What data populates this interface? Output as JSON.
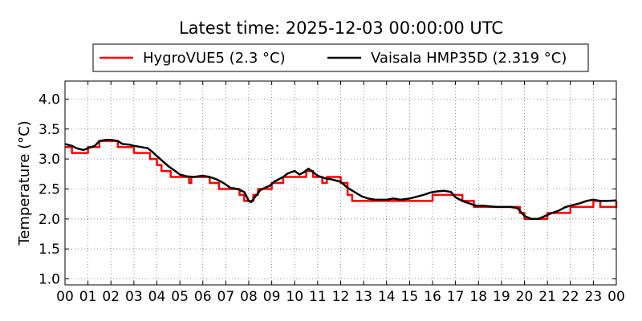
{
  "chart_data": {
    "type": "line",
    "title": "Latest time: 2025-12-03 00:00:00 UTC",
    "xlabel": "",
    "ylabel": "Temperature (°C)",
    "xlim": [
      0,
      24
    ],
    "ylim": [
      0.9,
      4.3
    ],
    "x_ticks": [
      "00",
      "01",
      "02",
      "03",
      "04",
      "05",
      "06",
      "07",
      "08",
      "09",
      "10",
      "11",
      "12",
      "13",
      "14",
      "15",
      "16",
      "17",
      "18",
      "19",
      "20",
      "21",
      "22",
      "23",
      "00"
    ],
    "y_ticks": [
      "1.0",
      "1.5",
      "2.0",
      "2.5",
      "3.0",
      "3.5",
      "4.0"
    ],
    "grid": true,
    "legend_position": "top",
    "series": [
      {
        "name": "HygroVUE5 (2.3 °C)",
        "color": "#ff0000",
        "x": [
          0,
          0.2,
          0.3,
          0.5,
          0.8,
          1.0,
          1.2,
          1.5,
          1.7,
          2.0,
          2.3,
          2.4,
          2.6,
          2.9,
          3.0,
          3.3,
          3.5,
          3.7,
          4.0,
          4.2,
          4.4,
          4.6,
          4.9,
          5.2,
          5.4,
          5.5,
          5.7,
          6.0,
          6.3,
          6.4,
          6.7,
          7.0,
          7.3,
          7.6,
          7.8,
          8.0,
          8.2,
          8.4,
          8.6,
          8.9,
          9.0,
          9.2,
          9.5,
          9.7,
          10.0,
          10.3,
          10.5,
          10.8,
          11.0,
          11.2,
          11.4,
          11.6,
          12.0,
          12.3,
          12.5,
          12.7,
          12.9,
          13.0,
          13.5,
          14.0,
          14.5,
          14.8,
          15.0,
          15.5,
          16.0,
          16.5,
          17.0,
          17.3,
          17.8,
          18.0,
          18.5,
          19.0,
          19.3,
          19.5,
          19.8,
          20.0,
          20.3,
          20.5,
          20.8,
          21.0,
          21.5,
          22.0,
          22.4,
          22.7,
          22.8,
          23.0,
          23.3,
          23.5,
          23.8,
          24.0
        ],
        "y": [
          3.2,
          3.2,
          3.1,
          3.1,
          3.1,
          3.2,
          3.2,
          3.3,
          3.3,
          3.3,
          3.2,
          3.2,
          3.2,
          3.2,
          3.1,
          3.1,
          3.1,
          3.0,
          2.9,
          2.8,
          2.8,
          2.7,
          2.7,
          2.7,
          2.6,
          2.7,
          2.7,
          2.7,
          2.6,
          2.6,
          2.5,
          2.5,
          2.5,
          2.4,
          2.3,
          2.3,
          2.4,
          2.5,
          2.5,
          2.5,
          2.6,
          2.6,
          2.7,
          2.7,
          2.7,
          2.7,
          2.8,
          2.7,
          2.7,
          2.6,
          2.7,
          2.7,
          2.6,
          2.4,
          2.3,
          2.3,
          2.3,
          2.3,
          2.3,
          2.3,
          2.3,
          2.3,
          2.3,
          2.3,
          2.4,
          2.4,
          2.4,
          2.3,
          2.2,
          2.2,
          2.2,
          2.2,
          2.2,
          2.2,
          2.1,
          2.0,
          2.0,
          2.0,
          2.0,
          2.1,
          2.1,
          2.2,
          2.2,
          2.2,
          2.2,
          2.3,
          2.2,
          2.2,
          2.2,
          2.3
        ]
      },
      {
        "name": "Vaisala HMP35D (2.319 °C)",
        "color": "#000000",
        "x": [
          0,
          0.3,
          0.5,
          0.8,
          1.0,
          1.3,
          1.5,
          1.8,
          2.0,
          2.3,
          2.5,
          2.8,
          3.0,
          3.3,
          3.6,
          3.8,
          4.0,
          4.2,
          4.5,
          4.8,
          5.0,
          5.3,
          5.6,
          5.8,
          6.0,
          6.3,
          6.6,
          6.9,
          7.2,
          7.5,
          7.8,
          7.9,
          8.0,
          8.1,
          8.3,
          8.5,
          8.7,
          8.9,
          9.1,
          9.3,
          9.5,
          9.7,
          10.0,
          10.2,
          10.4,
          10.6,
          10.8,
          11.0,
          11.3,
          11.6,
          12.0,
          12.3,
          12.6,
          12.9,
          13.2,
          13.5,
          13.8,
          14.0,
          14.3,
          14.6,
          15.0,
          15.3,
          15.6,
          15.9,
          16.2,
          16.5,
          16.8,
          17.0,
          17.3,
          17.6,
          17.9,
          18.2,
          18.5,
          18.8,
          19.1,
          19.4,
          19.7,
          20.0,
          20.3,
          20.6,
          20.9,
          21.2,
          21.5,
          21.8,
          22.1,
          22.4,
          22.7,
          23.0,
          23.3,
          23.6,
          24.0
        ],
        "y": [
          3.25,
          3.22,
          3.18,
          3.15,
          3.18,
          3.22,
          3.3,
          3.32,
          3.32,
          3.3,
          3.25,
          3.24,
          3.22,
          3.2,
          3.18,
          3.12,
          3.05,
          2.98,
          2.88,
          2.8,
          2.74,
          2.71,
          2.7,
          2.71,
          2.72,
          2.7,
          2.66,
          2.6,
          2.52,
          2.5,
          2.45,
          2.38,
          2.3,
          2.28,
          2.38,
          2.48,
          2.52,
          2.55,
          2.62,
          2.66,
          2.7,
          2.76,
          2.8,
          2.74,
          2.78,
          2.84,
          2.78,
          2.72,
          2.68,
          2.66,
          2.62,
          2.52,
          2.45,
          2.38,
          2.34,
          2.32,
          2.32,
          2.32,
          2.34,
          2.32,
          2.34,
          2.37,
          2.4,
          2.44,
          2.46,
          2.47,
          2.45,
          2.36,
          2.3,
          2.26,
          2.22,
          2.22,
          2.21,
          2.2,
          2.2,
          2.2,
          2.18,
          2.05,
          2.0,
          2.0,
          2.05,
          2.1,
          2.14,
          2.2,
          2.23,
          2.26,
          2.3,
          2.32,
          2.3,
          2.3,
          2.31
        ]
      }
    ]
  }
}
